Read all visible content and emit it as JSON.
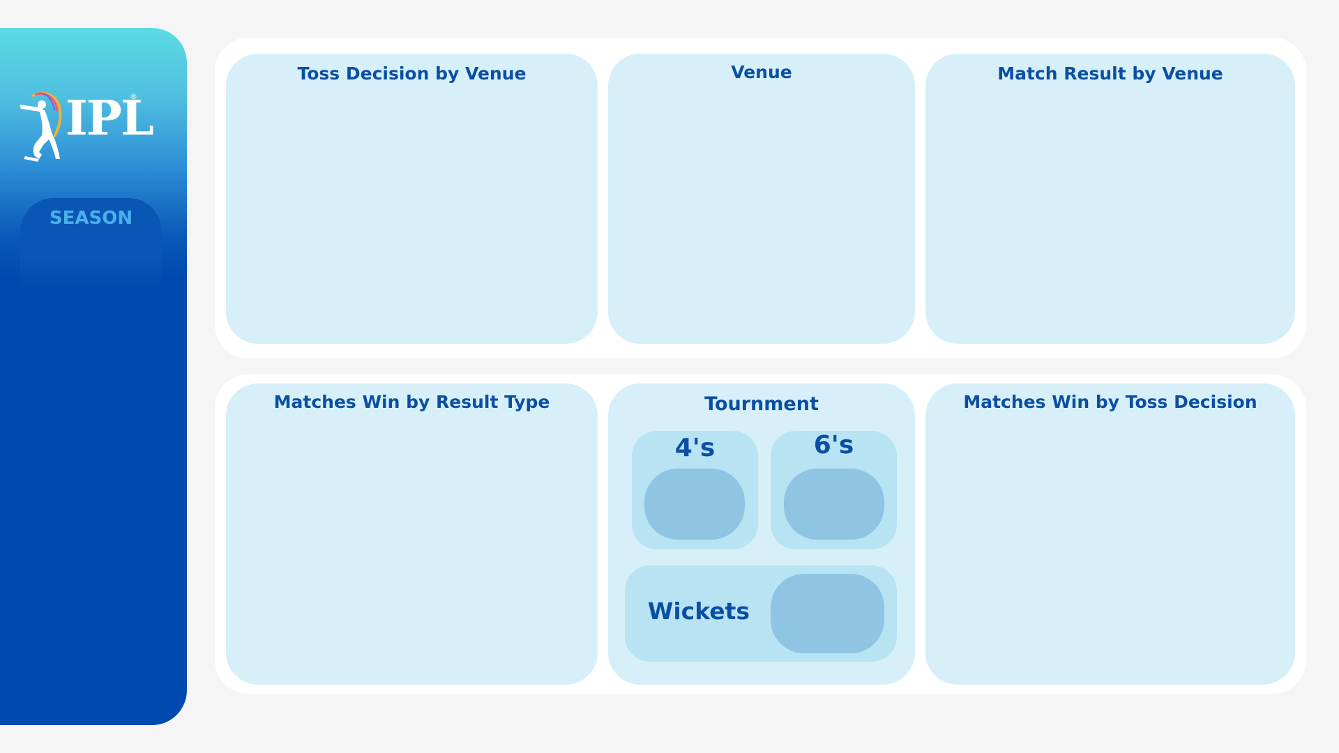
{
  "sidebar": {
    "logo_text": "IPL",
    "logo_reg": "®",
    "season_label": "SEASON"
  },
  "cards": {
    "toss_decision_by_venue": "Toss Decision by Venue",
    "venue": "Venue",
    "match_result_by_venue": "Match Result by Venue",
    "matches_win_by_result_type": "Matches Win by Result Type",
    "tournament": "Tournment",
    "matches_win_by_toss_decision": "Matches Win by Toss Decision"
  },
  "stats": {
    "fours_label": "4's",
    "sixes_label": "6's",
    "wickets_label": "Wickets"
  },
  "colors": {
    "sidebar_dark": "#0049ae",
    "sidebar_light": "#5cdbe3",
    "card_bg": "#d6eff8",
    "title_text": "#0b4fa3",
    "stat_bg": "#b8e3f3",
    "stat_value_bg": "#8fc4e3",
    "season_text": "#4ab1ea"
  },
  "icons": {
    "logo_icon": "batsman-icon"
  }
}
